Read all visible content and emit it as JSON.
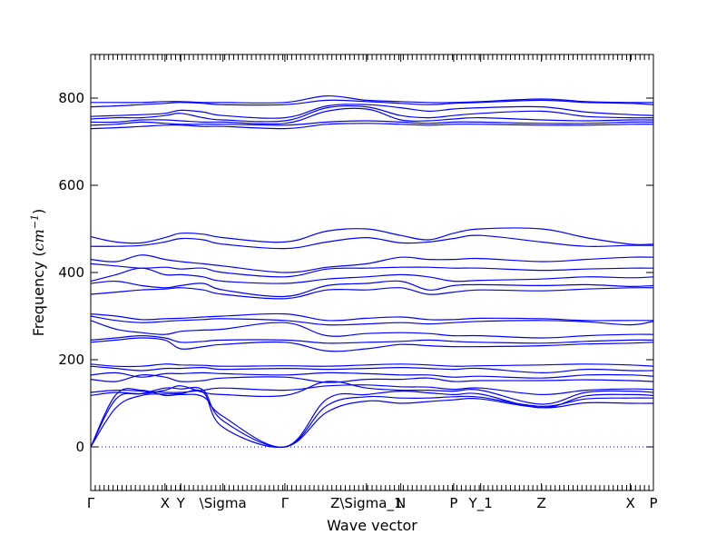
{
  "chart_data": {
    "type": "line",
    "title": "",
    "xlabel": "Wave vector",
    "ylabel": "Frequency",
    "ylabel_unit": "cm",
    "ylabel_unit_exp": "−1",
    "ylim": [
      -100,
      900
    ],
    "yticks": [
      0,
      200,
      400,
      600,
      800
    ],
    "grid": false,
    "zero_line": 0,
    "line_color": "#0000ff",
    "kpoints": [
      {
        "label": "Γ",
        "x": 0.0
      },
      {
        "label": "X",
        "x": 0.132
      },
      {
        "label": "Y",
        "x": 0.16
      },
      {
        "label": "\\Sigma",
        "x": 0.235
      },
      {
        "label": "Γ",
        "x": 0.345
      },
      {
        "label": "Z\\Sigma_1",
        "x": 0.49
      },
      {
        "label": "N",
        "x": 0.551
      },
      {
        "label": "P",
        "x": 0.645
      },
      {
        "label": "Y_1",
        "x": 0.693
      },
      {
        "label": "Z",
        "x": 0.801
      },
      {
        "label": "X",
        "x": 0.959
      },
      {
        "label": "P",
        "x": 1.0
      }
    ],
    "series": [
      {
        "values": [
          0,
          90,
          118,
          121,
          122,
          125,
          45,
          0,
          80,
          105,
          100,
          104,
          108,
          110,
          90,
          101,
          100,
          100
        ]
      },
      {
        "values": [
          0,
          110,
          122,
          135,
          133,
          130,
          60,
          0,
          95,
          115,
          112,
          112,
          115,
          114,
          93,
          110,
          112,
          112
        ]
      },
      {
        "values": [
          0,
          120,
          130,
          118,
          120,
          115,
          70,
          0,
          110,
          120,
          128,
          124,
          120,
          121,
          90,
          117,
          120,
          118
        ]
      },
      {
        "values": [
          118,
          125,
          122,
          130,
          140,
          125,
          120,
          118,
          150,
          135,
          130,
          130,
          128,
          130,
          98,
          125,
          128,
          125
        ]
      },
      {
        "values": [
          125,
          130,
          128,
          125,
          125,
          130,
          135,
          130,
          140,
          142,
          138,
          137,
          132,
          135,
          120,
          130,
          133,
          132
        ]
      },
      {
        "values": [
          155,
          150,
          165,
          160,
          150,
          152,
          158,
          160,
          148,
          155,
          155,
          158,
          150,
          152,
          152,
          154,
          152,
          150
        ]
      },
      {
        "values": [
          165,
          170,
          160,
          168,
          168,
          170,
          168,
          165,
          170,
          168,
          165,
          165,
          160,
          162,
          158,
          165,
          165,
          162
        ]
      },
      {
        "values": [
          185,
          180,
          175,
          180,
          180,
          182,
          178,
          180,
          178,
          180,
          182,
          180,
          178,
          180,
          170,
          178,
          175,
          175
        ]
      },
      {
        "values": [
          190,
          185,
          185,
          190,
          188,
          187,
          185,
          186,
          185,
          188,
          190,
          188,
          185,
          186,
          188,
          190,
          188,
          185
        ]
      },
      {
        "values": [
          240,
          245,
          250,
          245,
          225,
          230,
          235,
          240,
          220,
          225,
          235,
          232,
          230,
          230,
          232,
          236,
          238,
          240
        ]
      },
      {
        "values": [
          245,
          250,
          255,
          250,
          240,
          242,
          245,
          245,
          238,
          240,
          242,
          245,
          242,
          240,
          238,
          242,
          245,
          245
        ]
      },
      {
        "values": [
          290,
          270,
          262,
          258,
          265,
          268,
          270,
          285,
          255,
          260,
          262,
          260,
          255,
          255,
          250,
          255,
          258,
          258
        ]
      },
      {
        "values": [
          300,
          290,
          285,
          288,
          290,
          292,
          294,
          290,
          280,
          282,
          285,
          282,
          285,
          288,
          290,
          287,
          280,
          288
        ]
      },
      {
        "values": [
          305,
          300,
          292,
          294,
          295,
          298,
          300,
          305,
          290,
          295,
          298,
          292,
          292,
          295,
          294,
          290,
          290,
          290
        ]
      },
      {
        "values": [
          350,
          355,
          360,
          362,
          365,
          360,
          350,
          340,
          360,
          360,
          365,
          350,
          355,
          360,
          358,
          362,
          365,
          365
        ]
      },
      {
        "values": [
          375,
          380,
          370,
          365,
          370,
          375,
          360,
          345,
          370,
          375,
          380,
          360,
          370,
          372,
          370,
          372,
          368,
          370
        ]
      },
      {
        "values": [
          380,
          395,
          410,
          395,
          395,
          390,
          380,
          375,
          385,
          390,
          395,
          390,
          380,
          382,
          385,
          390,
          388,
          390
        ]
      },
      {
        "values": [
          420,
          415,
          410,
          412,
          408,
          410,
          400,
          390,
          408,
          410,
          412,
          412,
          410,
          410,
          405,
          408,
          410,
          410
        ]
      },
      {
        "values": [
          430,
          425,
          440,
          430,
          425,
          420,
          415,
          400,
          412,
          420,
          435,
          430,
          430,
          432,
          425,
          430,
          435,
          435
        ]
      },
      {
        "values": [
          460,
          460,
          462,
          470,
          478,
          475,
          465,
          455,
          470,
          480,
          468,
          470,
          478,
          485,
          470,
          460,
          462,
          462
        ]
      },
      {
        "values": [
          482,
          470,
          468,
          480,
          490,
          488,
          480,
          470,
          495,
          500,
          485,
          475,
          490,
          500,
          500,
          480,
          465,
          465
        ]
      },
      {
        "values": [
          730,
          732,
          735,
          738,
          738,
          735,
          735,
          730,
          740,
          742,
          740,
          738,
          740,
          740,
          738,
          738,
          740,
          740
        ]
      },
      {
        "values": [
          738,
          740,
          745,
          742,
          740,
          740,
          740,
          738,
          745,
          748,
          745,
          742,
          745,
          745,
          742,
          742,
          745,
          745
        ]
      },
      {
        "values": [
          745,
          745,
          750,
          750,
          748,
          745,
          745,
          742,
          770,
          775,
          750,
          748,
          752,
          755,
          750,
          748,
          750,
          750
        ]
      },
      {
        "values": [
          752,
          755,
          755,
          760,
          765,
          755,
          750,
          748,
          778,
          780,
          760,
          755,
          760,
          765,
          770,
          758,
          755,
          755
        ]
      },
      {
        "values": [
          758,
          760,
          762,
          765,
          772,
          768,
          760,
          755,
          782,
          785,
          778,
          770,
          775,
          778,
          780,
          768,
          762,
          760
        ]
      },
      {
        "values": [
          780,
          782,
          785,
          788,
          790,
          788,
          785,
          785,
          795,
          792,
          788,
          785,
          788,
          790,
          795,
          790,
          788,
          785
        ]
      },
      {
        "values": [
          790,
          790,
          790,
          792,
          792,
          790,
          790,
          790,
          805,
          795,
          792,
          790,
          790,
          792,
          798,
          792,
          790,
          790
        ]
      }
    ],
    "x": [
      0.0,
      0.045,
      0.09,
      0.132,
      0.16,
      0.2,
      0.235,
      0.345,
      0.42,
      0.49,
      0.551,
      0.6,
      0.645,
      0.693,
      0.801,
      0.88,
      0.959,
      1.0
    ]
  }
}
